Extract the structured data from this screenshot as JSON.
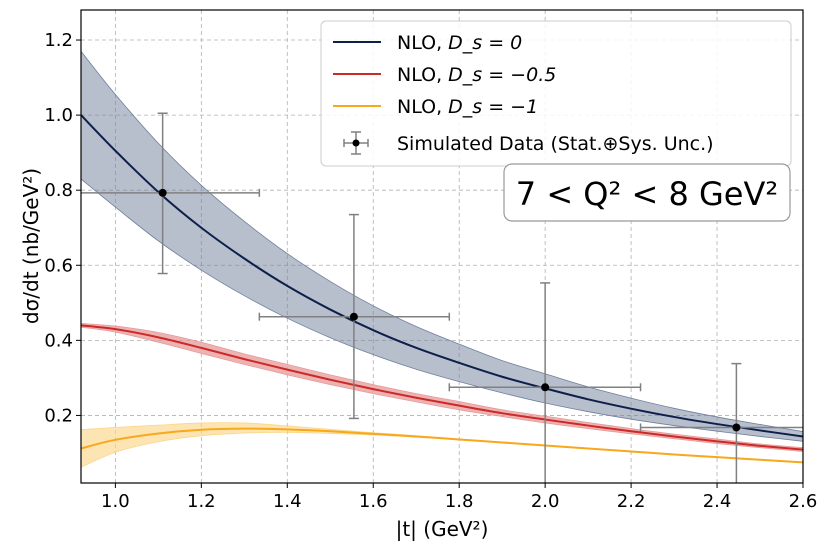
{
  "chart_data": {
    "type": "line",
    "xlabel": "|t| (GeV²)",
    "ylabel": "dσ/dt (nb/GeV²)",
    "xlim": [
      0.92,
      2.6
    ],
    "ylim": [
      0.02,
      1.28
    ],
    "x_ticks": [
      "1.0",
      "1.2",
      "1.4",
      "1.6",
      "1.8",
      "2.0",
      "2.2",
      "2.4",
      "2.6"
    ],
    "y_ticks": [
      "0.2",
      "0.4",
      "0.6",
      "0.8",
      "1.0",
      "1.2"
    ],
    "grid": true,
    "annotation": "7 < Q² < 8 GeV²",
    "legend_position": "top-right",
    "colors": {
      "nlo_ds0": "#0e1f4a",
      "nlo_ds0_band": "#6f7f9c",
      "nlo_ds05": "#cc2a28",
      "nlo_ds05_band": "#e79a9a",
      "nlo_ds1": "#f7a81b",
      "nlo_ds1_band": "#fcd68a",
      "data": "#000000",
      "errorbar": "#808080"
    },
    "series": [
      {
        "name": "NLO, D_s = 0",
        "label_text": "NLO, ",
        "label_math": "D_s = 0",
        "x": [
          0.92,
          1.0,
          1.1,
          1.2,
          1.3,
          1.4,
          1.5,
          1.6,
          1.7,
          1.8,
          1.9,
          2.0,
          2.1,
          2.2,
          2.3,
          2.4,
          2.5,
          2.6
        ],
        "y": [
          1.0,
          0.905,
          0.795,
          0.7,
          0.618,
          0.545,
          0.482,
          0.427,
          0.38,
          0.34,
          0.303,
          0.272,
          0.243,
          0.218,
          0.196,
          0.177,
          0.16,
          0.144
        ],
        "lower": [
          0.83,
          0.755,
          0.665,
          0.587,
          0.519,
          0.459,
          0.407,
          0.362,
          0.323,
          0.29,
          0.26,
          0.233,
          0.21,
          0.19,
          0.173,
          0.158,
          0.144,
          0.131
        ],
        "upper": [
          1.17,
          1.055,
          0.925,
          0.813,
          0.717,
          0.631,
          0.557,
          0.492,
          0.437,
          0.39,
          0.346,
          0.311,
          0.276,
          0.246,
          0.219,
          0.196,
          0.176,
          0.157
        ]
      },
      {
        "name": "NLO, D_s = -0.5",
        "label_text": "NLO, ",
        "label_math": "D_s = −0.5",
        "x": [
          0.92,
          1.0,
          1.1,
          1.2,
          1.3,
          1.4,
          1.5,
          1.6,
          1.7,
          1.8,
          1.9,
          2.0,
          2.1,
          2.2,
          2.3,
          2.4,
          2.5,
          2.6
        ],
        "y": [
          0.44,
          0.43,
          0.408,
          0.38,
          0.35,
          0.322,
          0.295,
          0.27,
          0.247,
          0.226,
          0.206,
          0.189,
          0.173,
          0.158,
          0.144,
          0.131,
          0.119,
          0.109
        ],
        "lower": [
          0.435,
          0.422,
          0.395,
          0.365,
          0.336,
          0.308,
          0.282,
          0.258,
          0.236,
          0.215,
          0.197,
          0.18,
          0.165,
          0.151,
          0.138,
          0.125,
          0.114,
          0.104
        ],
        "upper": [
          0.445,
          0.438,
          0.421,
          0.395,
          0.364,
          0.336,
          0.308,
          0.282,
          0.258,
          0.237,
          0.215,
          0.198,
          0.181,
          0.165,
          0.15,
          0.137,
          0.124,
          0.114
        ]
      },
      {
        "name": "NLO, D_s = -1",
        "label_text": "NLO, ",
        "label_math": "D_s = −1",
        "x": [
          0.92,
          1.0,
          1.1,
          1.2,
          1.3,
          1.4,
          1.5,
          1.6,
          1.7,
          1.8,
          1.9,
          2.0,
          2.1,
          2.2,
          2.3,
          2.4,
          2.5,
          2.6
        ],
        "y": [
          0.112,
          0.135,
          0.152,
          0.162,
          0.165,
          0.163,
          0.158,
          0.151,
          0.144,
          0.136,
          0.128,
          0.12,
          0.112,
          0.104,
          0.096,
          0.089,
          0.082,
          0.075
        ],
        "lower": [
          0.062,
          0.102,
          0.13,
          0.146,
          0.153,
          0.155,
          0.152,
          0.148,
          0.142,
          0.135,
          0.127,
          0.119,
          0.111,
          0.103,
          0.095,
          0.088,
          0.081,
          0.074
        ],
        "upper": [
          0.162,
          0.168,
          0.174,
          0.18,
          0.18,
          0.172,
          0.163,
          0.154,
          0.146,
          0.137,
          0.129,
          0.121,
          0.113,
          0.105,
          0.097,
          0.09,
          0.083,
          0.076
        ]
      }
    ],
    "data_points": {
      "name": "Simulated Data (Stat.⊕Sys. Unc.)",
      "points": [
        {
          "x": 1.11,
          "y": 0.793,
          "xlo": 0.88,
          "xhi": 1.335,
          "ylo": 0.578,
          "yhi": 1.005
        },
        {
          "x": 1.555,
          "y": 0.463,
          "xlo": 1.335,
          "xhi": 1.777,
          "ylo": 0.192,
          "yhi": 0.735
        },
        {
          "x": 2.0,
          "y": 0.275,
          "xlo": 1.777,
          "xhi": 2.222,
          "ylo": 0.0,
          "yhi": 0.553
        },
        {
          "x": 2.445,
          "y": 0.168,
          "xlo": 2.222,
          "xhi": 2.667,
          "ylo": 0.0,
          "yhi": 0.338
        }
      ]
    }
  }
}
